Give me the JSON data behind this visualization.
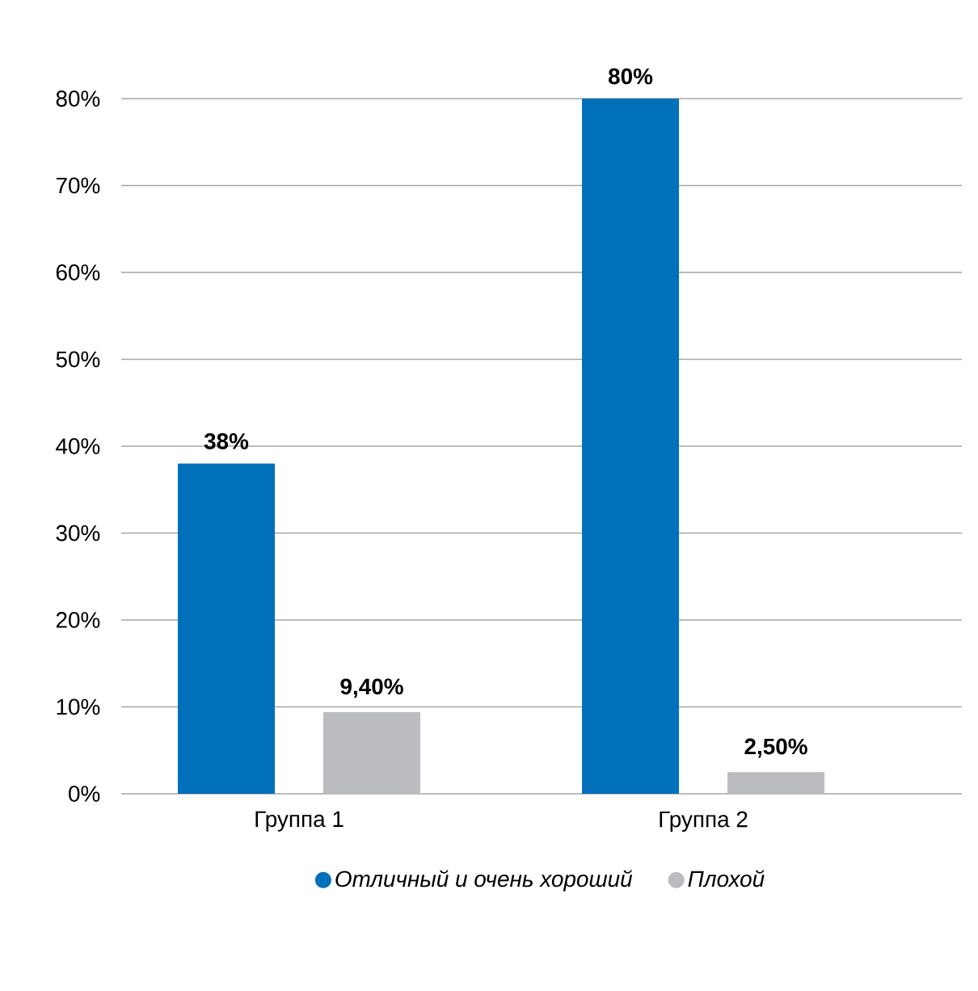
{
  "chart_data": {
    "type": "bar",
    "categories": [
      "Группа 1",
      "Группа 2"
    ],
    "series": [
      {
        "name": "Отличный и очень хороший",
        "color": "#0070bb",
        "values": [
          38,
          80
        ],
        "value_labels": [
          "38%",
          "80%"
        ]
      },
      {
        "name": "Плохой",
        "color": "#bbbcbf",
        "values": [
          9.4,
          2.5
        ],
        "value_labels": [
          "9,40%",
          "2,50%"
        ]
      }
    ],
    "ylim": [
      0,
      80
    ],
    "yticks": [
      {
        "value": 0,
        "label": "0%"
      },
      {
        "value": 10,
        "label": "10%"
      },
      {
        "value": 20,
        "label": "20%"
      },
      {
        "value": 30,
        "label": "30%"
      },
      {
        "value": 40,
        "label": "40%"
      },
      {
        "value": 50,
        "label": "50%"
      },
      {
        "value": 60,
        "label": "60%"
      },
      {
        "value": 70,
        "label": "70%"
      },
      {
        "value": 80,
        "label": "80%"
      }
    ],
    "grid": "y",
    "legend": "bottom"
  }
}
